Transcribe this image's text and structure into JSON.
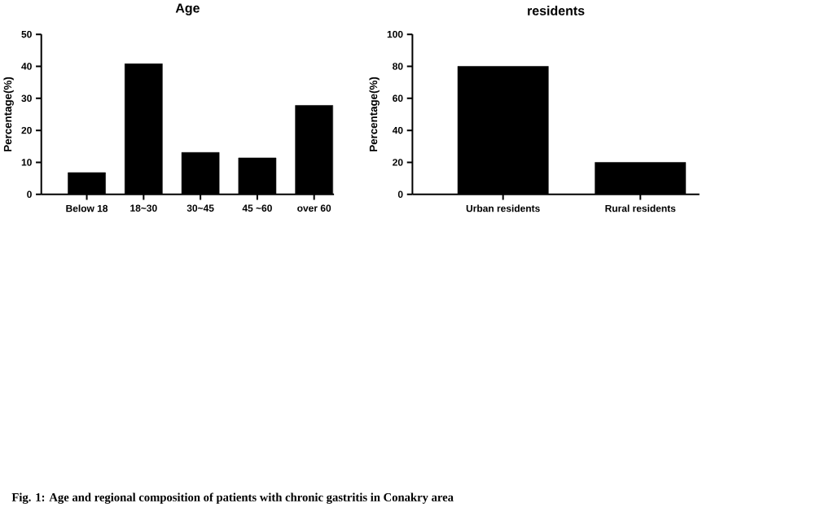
{
  "chart_data": [
    {
      "type": "bar",
      "title": "Age",
      "ylabel": "Percentage(%)",
      "categories": [
        "Below 18",
        "18~30",
        "30~45",
        "45 ~60",
        "over 60"
      ],
      "values": [
        6.8,
        40.8,
        13.1,
        11.4,
        27.8
      ],
      "color": "#000000",
      "ylim": [
        0,
        50
      ],
      "yticks": [
        0,
        10,
        20,
        30,
        40,
        50
      ],
      "annotations": [
        "Fig. 1: Age and regional composition of patients with chronic gastritis in Conakry area"
      ]
    },
    {
      "type": "bar",
      "title": "residents",
      "ylabel": "Percentage(%)",
      "categories": [
        "Urban residents",
        "Rural residents"
      ],
      "values": [
        80,
        20
      ],
      "color": "#000000",
      "ylim": [
        0,
        100
      ],
      "yticks": [
        0,
        20,
        40,
        60,
        80,
        100
      ]
    }
  ]
}
